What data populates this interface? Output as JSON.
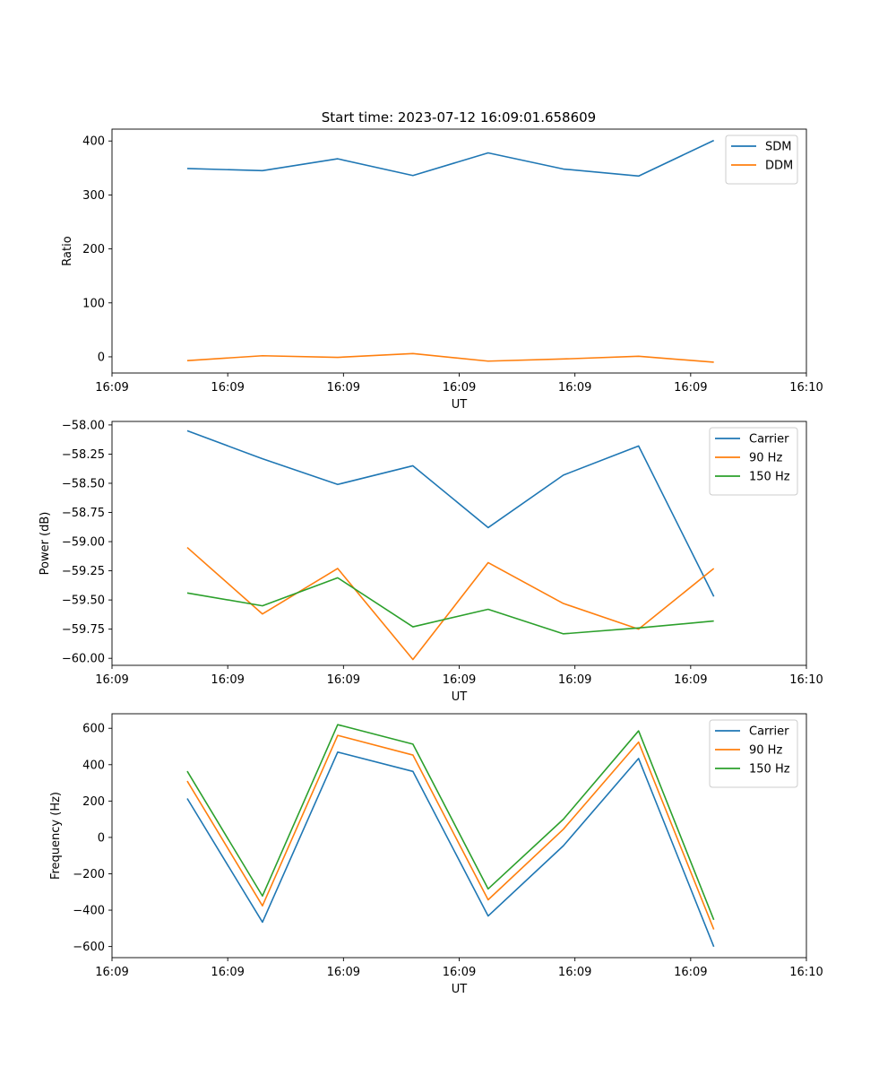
{
  "title": "Start time: 2023-07-12 16:09:01.658609",
  "chart_data": [
    {
      "type": "line",
      "xlabel": "UT",
      "ylabel": "Ratio",
      "x": [
        0.85,
        1.5,
        2.15,
        2.8,
        3.45,
        4.1,
        4.75,
        5.4
      ],
      "xlim": [
        0.2,
        6.2
      ],
      "xtick_values": [
        0.2,
        1.2,
        2.2,
        3.2,
        4.2,
        5.2,
        6.2
      ],
      "xtick_labels": [
        "16:09",
        "16:09",
        "16:09",
        "16:09",
        "16:09",
        "16:09",
        "16:10"
      ],
      "ylim": [
        -30,
        422
      ],
      "yticks": [
        0,
        100,
        200,
        300,
        400
      ],
      "legend": "top-right",
      "series": [
        {
          "name": "SDM",
          "color": "#1f77b4",
          "values": [
            349,
            345,
            367,
            336,
            378,
            348,
            335,
            401
          ]
        },
        {
          "name": "DDM",
          "color": "#ff7f0e",
          "values": [
            -7,
            2,
            -1,
            6,
            -8,
            -4,
            1,
            -10
          ]
        }
      ]
    },
    {
      "type": "line",
      "xlabel": "UT",
      "ylabel": "Power (dB)",
      "x": [
        0.85,
        1.5,
        2.15,
        2.8,
        3.45,
        4.1,
        4.75,
        5.4
      ],
      "xlim": [
        0.2,
        6.2
      ],
      "xtick_values": [
        0.2,
        1.2,
        2.2,
        3.2,
        4.2,
        5.2,
        6.2
      ],
      "xtick_labels": [
        "16:09",
        "16:09",
        "16:09",
        "16:09",
        "16:09",
        "16:09",
        "16:10"
      ],
      "ylim": [
        -60.06,
        -57.97
      ],
      "yticks": [
        -58.0,
        -58.25,
        -58.5,
        -58.75,
        -59.0,
        -59.25,
        -59.5,
        -59.75,
        -60.0
      ],
      "ytick_labels": [
        "−58.00",
        "−58.25",
        "−58.50",
        "−58.75",
        "−59.00",
        "−59.25",
        "−59.50",
        "−59.75",
        "−60.00"
      ],
      "legend": "top-right",
      "series": [
        {
          "name": "Carrier",
          "color": "#1f77b4",
          "values": [
            -58.05,
            -58.29,
            -58.51,
            -58.35,
            -58.88,
            -58.43,
            -58.18,
            -59.47
          ]
        },
        {
          "name": "90 Hz",
          "color": "#ff7f0e",
          "values": [
            -59.05,
            -59.62,
            -59.23,
            -60.01,
            -59.18,
            -59.53,
            -59.75,
            -59.23
          ]
        },
        {
          "name": "150 Hz",
          "color": "#2ca02c",
          "values": [
            -59.44,
            -59.55,
            -59.31,
            -59.73,
            -59.58,
            -59.79,
            -59.74,
            -59.68
          ]
        }
      ]
    },
    {
      "type": "line",
      "xlabel": "UT",
      "ylabel": "Frequency (Hz)",
      "x": [
        0.85,
        1.5,
        2.15,
        2.8,
        3.45,
        4.1,
        4.75,
        5.4
      ],
      "xlim": [
        0.2,
        6.2
      ],
      "xtick_values": [
        0.2,
        1.2,
        2.2,
        3.2,
        4.2,
        5.2,
        6.2
      ],
      "xtick_labels": [
        "16:09",
        "16:09",
        "16:09",
        "16:09",
        "16:09",
        "16:09",
        "16:10"
      ],
      "ylim": [
        -661,
        680
      ],
      "yticks": [
        600,
        400,
        200,
        0,
        -200,
        -400,
        -600
      ],
      "ytick_labels": [
        "600",
        "400",
        "200",
        "0",
        "−200",
        "−400",
        "−600"
      ],
      "legend": "top-right",
      "series": [
        {
          "name": "Carrier",
          "color": "#1f77b4",
          "values": [
            214,
            -466,
            469,
            363,
            -432,
            -46,
            434,
            -601
          ]
        },
        {
          "name": "90 Hz",
          "color": "#ff7f0e",
          "values": [
            310,
            -376,
            561,
            453,
            -343,
            45,
            524,
            -506
          ]
        },
        {
          "name": "150 Hz",
          "color": "#2ca02c",
          "values": [
            364,
            -322,
            620,
            513,
            -283,
            100,
            586,
            -453
          ]
        }
      ]
    }
  ]
}
